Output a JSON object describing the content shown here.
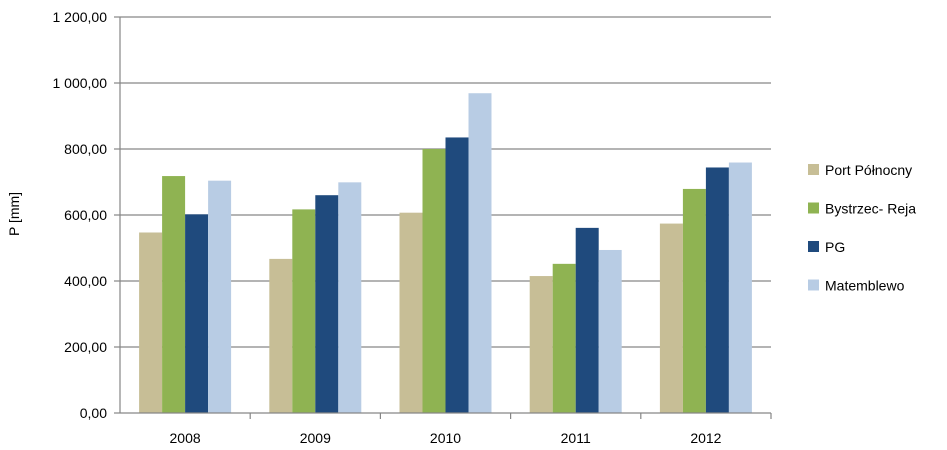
{
  "chart_data": {
    "type": "bar",
    "title": "",
    "xlabel": "",
    "ylabel": "P [mm]",
    "ylim": [
      0,
      1200
    ],
    "yticks": [
      0,
      200,
      400,
      600,
      800,
      1000,
      1200
    ],
    "ytick_labels": [
      "0,00",
      "200,00",
      "400,00",
      "600,00",
      "800,00",
      "1 000,00",
      "1 200,00"
    ],
    "grid": true,
    "legend_position": "right",
    "categories": [
      "2008",
      "2009",
      "2010",
      "2011",
      "2012"
    ],
    "series": [
      {
        "name": "Port Północny",
        "color": "#c7be96",
        "values": [
          547,
          467,
          607,
          415,
          574
        ]
      },
      {
        "name": "Bystrzec- Reja",
        "color": "#8fb352",
        "values": [
          718,
          617,
          800,
          452,
          679
        ]
      },
      {
        "name": "PG",
        "color": "#1f4a7d",
        "values": [
          602,
          660,
          835,
          561,
          744
        ]
      },
      {
        "name": "Matemblewo",
        "color": "#b8cce4",
        "values": [
          704,
          699,
          969,
          494,
          759
        ]
      }
    ]
  }
}
